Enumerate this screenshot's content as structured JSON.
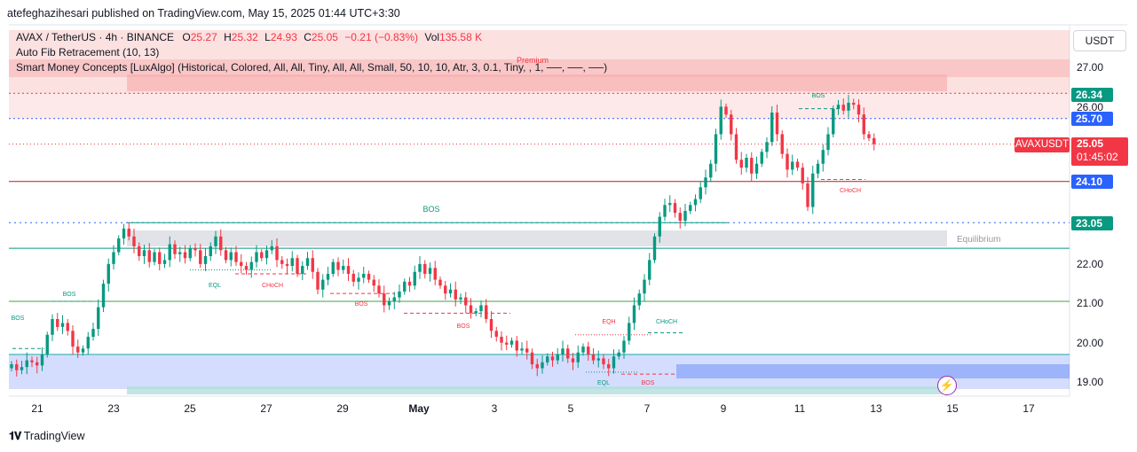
{
  "header": {
    "published_line": "atefeghazihesari published on TradingView.com, May 15, 2025 01:44 UTC+3:30"
  },
  "legend": {
    "symbol": "AVAX / TetherUS · 4h · BINANCE",
    "o_label": "O",
    "o_value": "25.27",
    "h_label": "H",
    "h_value": "25.32",
    "l_label": "L",
    "l_value": "24.93",
    "c_label": "C",
    "c_value": "25.05",
    "change": "−0.21 (−0.83%)",
    "vol_label": "Vol",
    "vol_value": "135.58 K",
    "indicator_1": "Auto Fib Retracement (10, 13)",
    "indicator_2": "Smart Money Concepts [LuxAlgo] (Historical, Colored, All, All, Tiny, All, All, Small, 50, 10, 10, Atr, 3, 0.1, Tiny, , 1, ──, ──, ──)"
  },
  "price_scale": {
    "currency": "USDT",
    "tick_labels": [
      "27.00",
      "26.00",
      "22.00",
      "21.00",
      "20.00",
      "19.00"
    ],
    "badges": [
      {
        "text": "26.34",
        "color": "#089981"
      },
      {
        "text": "25.70",
        "color": "#2962ff"
      },
      {
        "text": "24.10",
        "color": "#2962ff"
      },
      {
        "text": "23.05",
        "color": "#089981"
      }
    ],
    "symbol_badge": "AVAXUSDT",
    "current_price": "25.05",
    "countdown": "01:45:02"
  },
  "time_axis": {
    "labels": [
      "21",
      "23",
      "25",
      "27",
      "29",
      "May",
      "3",
      "5",
      "7",
      "9",
      "11",
      "13",
      "15",
      "17"
    ]
  },
  "zone_labels": {
    "premium": "Premium",
    "equilibrium": "Equilibrium"
  },
  "smc_labels": [
    {
      "text": "BOS",
      "color": "#089981"
    },
    {
      "text": "BOS",
      "color": "#089981"
    },
    {
      "text": "BOS",
      "color": "#089981"
    },
    {
      "text": "EQL",
      "color": "#089981"
    },
    {
      "text": "CHoCH",
      "color": "#f23645"
    },
    {
      "text": "BOS",
      "color": "#f23645"
    },
    {
      "text": "BOS",
      "color": "#f23645"
    },
    {
      "text": "EQH",
      "color": "#f23645"
    },
    {
      "text": "CHoCH",
      "color": "#089981"
    },
    {
      "text": "EQL",
      "color": "#089981"
    },
    {
      "text": "BOS",
      "color": "#f23645"
    },
    {
      "text": "BOS",
      "color": "#089981"
    },
    {
      "text": "CHoCH",
      "color": "#f23645"
    }
  ],
  "footer": {
    "brand": "TradingView"
  },
  "colors": {
    "up": "#089981",
    "down": "#f23645",
    "premium_zone": "#f7a9a9",
    "discount_zone": "#6f8ff7",
    "equilibrium_zone": "#d1d4dc"
  },
  "chart_data": {
    "type": "candlestick",
    "symbol": "AVAX / TetherUS",
    "interval": "4h",
    "exchange": "BINANCE",
    "x_labels": [
      "21",
      "23",
      "25",
      "27",
      "29",
      "May",
      "3",
      "5",
      "7",
      "9",
      "11",
      "13",
      "15",
      "17"
    ],
    "ylim": [
      18.7,
      27.4
    ],
    "price_levels": [
      26.34,
      25.7,
      24.1,
      23.05,
      22.4,
      21.05,
      19.7
    ],
    "current": {
      "open": 25.27,
      "high": 25.32,
      "low": 24.93,
      "close": 25.05
    },
    "closes": [
      19.45,
      19.3,
      19.38,
      19.55,
      19.5,
      19.42,
      19.7,
      20.2,
      20.6,
      20.4,
      20.5,
      20.3,
      19.9,
      19.75,
      19.85,
      20.15,
      20.35,
      20.9,
      21.5,
      22.0,
      22.3,
      22.65,
      22.9,
      22.7,
      22.45,
      22.2,
      22.35,
      22.05,
      22.3,
      22.0,
      22.1,
      22.5,
      22.25,
      22.3,
      22.15,
      22.4,
      22.35,
      22.0,
      22.2,
      22.45,
      22.7,
      22.35,
      22.1,
      22.3,
      22.05,
      21.95,
      21.85,
      22.05,
      22.3,
      22.15,
      22.35,
      22.45,
      22.1,
      22.0,
      21.95,
      22.15,
      21.75,
      21.95,
      22.15,
      21.8,
      21.35,
      21.6,
      21.75,
      22.05,
      21.85,
      21.95,
      21.75,
      21.55,
      21.65,
      21.75,
      21.6,
      21.45,
      21.25,
      20.95,
      21.05,
      21.15,
      21.3,
      21.55,
      21.45,
      21.8,
      22.0,
      21.75,
      21.9,
      21.6,
      21.45,
      21.25,
      21.35,
      21.1,
      21.15,
      20.95,
      20.75,
      20.8,
      20.95,
      20.6,
      20.3,
      20.15,
      20.0,
      19.95,
      20.05,
      19.8,
      19.85,
      19.75,
      19.45,
      19.35,
      19.5,
      19.65,
      19.55,
      19.7,
      19.85,
      19.6,
      19.5,
      19.75,
      19.9,
      19.7,
      19.55,
      19.6,
      19.45,
      19.35,
      19.65,
      19.75,
      20.05,
      20.5,
      20.95,
      21.25,
      21.6,
      22.1,
      22.7,
      23.2,
      23.5,
      23.55,
      23.3,
      23.1,
      23.35,
      23.5,
      23.65,
      23.95,
      24.2,
      24.55,
      25.3,
      26.0,
      25.8,
      25.3,
      24.65,
      24.45,
      24.7,
      24.3,
      24.55,
      24.85,
      25.1,
      25.85,
      25.3,
      24.8,
      24.4,
      24.6,
      24.45,
      24.05,
      23.45,
      24.3,
      24.55,
      24.9,
      25.3,
      25.95,
      26.05,
      25.9,
      26.1,
      26.05,
      25.8,
      25.3,
      25.2,
      25.05
    ]
  }
}
